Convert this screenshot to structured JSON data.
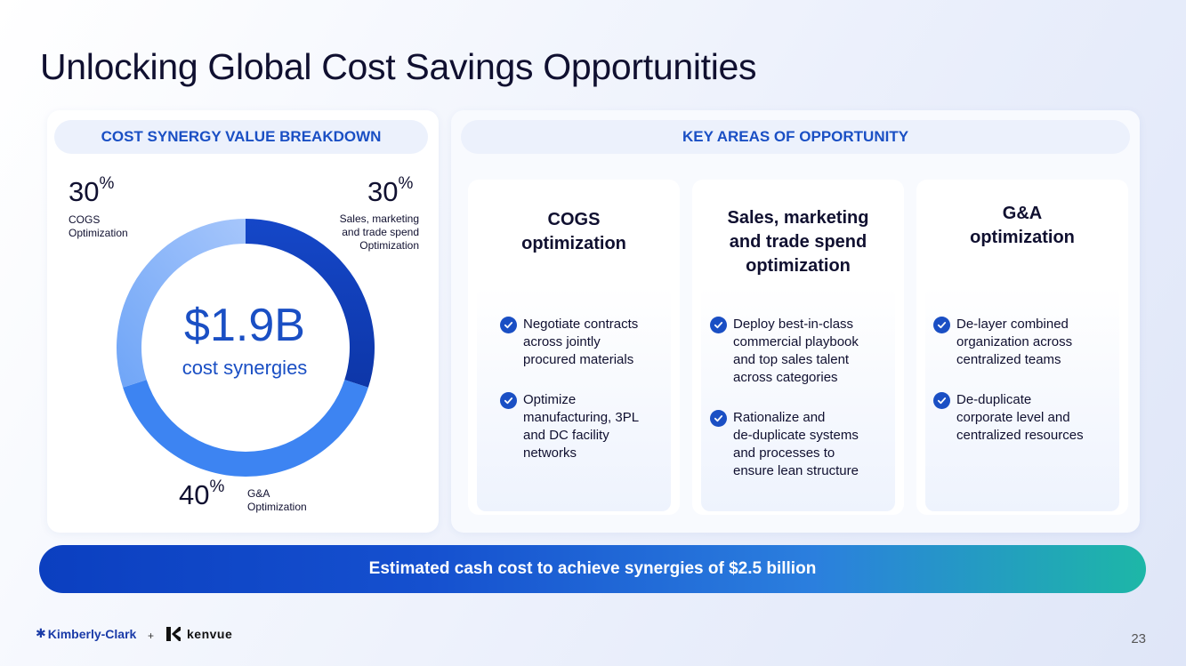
{
  "page_title": "Unlocking Global Cost Savings Opportunities",
  "left_panel": {
    "header": "COST SYNERGY VALUE BREAKDOWN",
    "center_value": "$1.9B",
    "center_label": "cost synergies",
    "segments": [
      {
        "percent": "30",
        "unit": "%",
        "label_line1": "Sales, marketing",
        "label_line2": "and trade spend",
        "label_line3": "Optimization",
        "share": 30,
        "color": "#1547c8"
      },
      {
        "percent": "40",
        "unit": "%",
        "label_line1": "G&A",
        "label_line2": "Optimization",
        "share": 40,
        "color": "#3d84f2"
      },
      {
        "percent": "30",
        "unit": "%",
        "label_line1": "COGS",
        "label_line2": "Optimization",
        "share": 30,
        "color": "#a6c6fb"
      }
    ]
  },
  "right_panel": {
    "header": "KEY AREAS OF OPPORTUNITY",
    "cards": [
      {
        "title_lines": [
          "COGS",
          "optimization"
        ],
        "items": [
          [
            "Negotiate contracts",
            "across jointly",
            "procured materials"
          ],
          [
            "Optimize",
            "manufacturing, 3PL",
            "and DC facility",
            "networks"
          ]
        ]
      },
      {
        "title_lines": [
          "Sales, marketing",
          "and trade spend",
          "optimization"
        ],
        "items": [
          [
            "Deploy best-in-class",
            "commercial playbook",
            "and top sales talent",
            "across categories"
          ],
          [
            "Rationalize and",
            "de-duplicate systems",
            "and processes to",
            "ensure lean structure"
          ]
        ]
      },
      {
        "title_lines": [
          "G&A",
          "optimization"
        ],
        "items": [
          [
            "De-layer combined",
            "organization across",
            "centralized teams"
          ],
          [
            "De-duplicate",
            "corporate level and",
            "centralized resources"
          ]
        ]
      }
    ]
  },
  "banner": "Estimated cash cost to achieve synergies of $2.5 billion",
  "footer": {
    "logo_left": "Kimberly-Clark",
    "plus": "+",
    "logo_right": "kenvue",
    "page_number": "23"
  },
  "icons": {
    "check": "check-circle-icon"
  }
}
